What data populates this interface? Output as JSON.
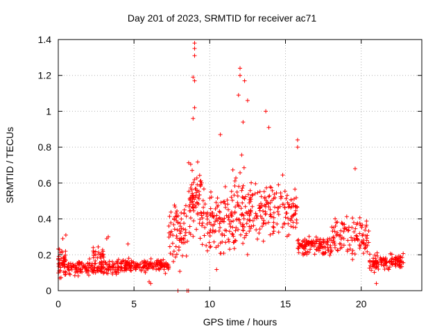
{
  "chart_data": {
    "type": "scatter",
    "title": "Day 201 of 2023, SRMTID for receiver ac71",
    "xlabel": "GPS time / hours",
    "ylabel": "SRMTID / TECUs",
    "xlim": [
      0,
      24
    ],
    "ylim": [
      0,
      1.4
    ],
    "xticks": [
      0,
      5,
      10,
      15,
      20
    ],
    "xtick_labels": [
      "0",
      "5",
      "10",
      "15",
      "20"
    ],
    "yticks": [
      0,
      0.2,
      0.4,
      0.6,
      0.8,
      1.0,
      1.2,
      1.4
    ],
    "ytick_labels": [
      "0",
      "0.2",
      "0.4",
      "0.6",
      "0.8",
      "1",
      "1.2",
      "1.4"
    ],
    "grid": true,
    "marker": "+",
    "series_color": "#ff0000",
    "data_profile": [
      {
        "x_start": 0.0,
        "x_end": 0.5,
        "base": 0.16,
        "spread": 0.12,
        "n": 45
      },
      {
        "x_start": 0.5,
        "x_end": 4.0,
        "base": 0.13,
        "spread": 0.06,
        "n": 160
      },
      {
        "x_start": 2.3,
        "x_end": 3.0,
        "base": 0.2,
        "spread": 0.08,
        "n": 25
      },
      {
        "x_start": 4.0,
        "x_end": 7.3,
        "base": 0.14,
        "spread": 0.05,
        "n": 160
      },
      {
        "x_start": 7.3,
        "x_end": 8.6,
        "base": 0.33,
        "spread": 0.22,
        "n": 70
      },
      {
        "x_start": 8.6,
        "x_end": 9.5,
        "base": 0.5,
        "spread": 0.3,
        "n": 75
      },
      {
        "x_start": 9.5,
        "x_end": 11.5,
        "base": 0.38,
        "spread": 0.25,
        "n": 110
      },
      {
        "x_start": 11.5,
        "x_end": 12.5,
        "base": 0.45,
        "spread": 0.3,
        "n": 65
      },
      {
        "x_start": 12.5,
        "x_end": 15.8,
        "base": 0.45,
        "spread": 0.2,
        "n": 160
      },
      {
        "x_start": 15.8,
        "x_end": 18.0,
        "base": 0.25,
        "spread": 0.08,
        "n": 110
      },
      {
        "x_start": 18.0,
        "x_end": 20.5,
        "base": 0.3,
        "spread": 0.15,
        "n": 110
      },
      {
        "x_start": 20.5,
        "x_end": 22.8,
        "base": 0.16,
        "spread": 0.06,
        "n": 120
      }
    ],
    "notable_points": [
      {
        "x": 9.0,
        "y": 1.38
      },
      {
        "x": 9.0,
        "y": 1.35
      },
      {
        "x": 9.0,
        "y": 1.31
      },
      {
        "x": 8.9,
        "y": 1.19
      },
      {
        "x": 9.0,
        "y": 1.17
      },
      {
        "x": 9.0,
        "y": 1.02
      },
      {
        "x": 8.9,
        "y": 0.96
      },
      {
        "x": 12.0,
        "y": 1.24
      },
      {
        "x": 12.0,
        "y": 1.2
      },
      {
        "x": 12.3,
        "y": 1.17
      },
      {
        "x": 11.9,
        "y": 1.09
      },
      {
        "x": 12.5,
        "y": 1.06
      },
      {
        "x": 13.7,
        "y": 1.0
      },
      {
        "x": 12.2,
        "y": 0.94
      },
      {
        "x": 13.9,
        "y": 0.91
      },
      {
        "x": 10.7,
        "y": 0.87
      },
      {
        "x": 15.8,
        "y": 0.84
      },
      {
        "x": 15.8,
        "y": 0.8
      },
      {
        "x": 19.6,
        "y": 0.68
      },
      {
        "x": 8.6,
        "y": 0.0
      },
      {
        "x": 8.5,
        "y": 0.0
      },
      {
        "x": 7.9,
        "y": 0.0
      },
      {
        "x": 6.1,
        "y": 0.04
      },
      {
        "x": 6.0,
        "y": 0.05
      },
      {
        "x": 21.0,
        "y": 0.04
      },
      {
        "x": 0.1,
        "y": 0.07
      },
      {
        "x": 0.3,
        "y": 0.29
      },
      {
        "x": 0.5,
        "y": 0.31
      },
      {
        "x": 3.3,
        "y": 0.3
      },
      {
        "x": 3.2,
        "y": 0.29
      },
      {
        "x": 4.6,
        "y": 0.26
      },
      {
        "x": 7.3,
        "y": 0.36
      }
    ]
  }
}
